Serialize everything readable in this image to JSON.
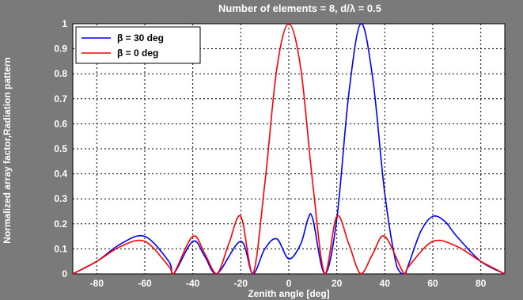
{
  "chart_data": {
    "type": "line",
    "title": "Number of elements = 8, d/λ = 0.5",
    "xlabel": "Zenith angle [deg]",
    "ylabel": "Normalized array factor,Radiation pattern",
    "xlim": [
      -90,
      90
    ],
    "ylim": [
      0,
      1
    ],
    "xticks": [
      "-80",
      "-60",
      "-40",
      "-20",
      "0",
      "20",
      "40",
      "60",
      "80"
    ],
    "yticks": [
      "0",
      "0.1",
      "0.2",
      "0.3",
      "0.4",
      "0.5",
      "0.6",
      "0.7",
      "0.8",
      "0.9",
      "1"
    ],
    "grid": true,
    "legend_position": "top-left",
    "series": [
      {
        "name": "β = 30 deg",
        "color": "#0000ff",
        "x": [
          -90,
          -80,
          -70,
          -60,
          -50,
          -48,
          -40,
          -35,
          -30,
          -20,
          -15,
          -10,
          -5,
          0,
          5,
          8,
          10,
          15,
          20,
          25,
          30,
          35,
          40,
          45,
          48,
          50,
          55,
          60,
          65,
          70,
          80,
          90
        ],
        "y": [
          0.0,
          0.05,
          0.12,
          0.15,
          0.05,
          0.0,
          0.13,
          0.07,
          0.0,
          0.13,
          0.0,
          0.1,
          0.14,
          0.06,
          0.12,
          0.22,
          0.22,
          0.0,
          0.22,
          0.72,
          1.0,
          0.78,
          0.32,
          0.03,
          0.0,
          0.04,
          0.17,
          0.23,
          0.21,
          0.15,
          0.05,
          0.0
        ]
      },
      {
        "name": "β = 0 deg",
        "color": "#ff0000",
        "x": [
          -90,
          -80,
          -70,
          -60,
          -50,
          -48,
          -40,
          -35,
          -30,
          -25,
          -20,
          -15,
          -10,
          -5,
          0,
          5,
          10,
          15,
          20,
          25,
          30,
          35,
          40,
          48,
          50,
          60,
          70,
          80,
          90
        ],
        "y": [
          0.0,
          0.05,
          0.11,
          0.13,
          0.03,
          0.0,
          0.15,
          0.08,
          0.0,
          0.12,
          0.23,
          0.0,
          0.36,
          0.82,
          1.0,
          0.82,
          0.36,
          0.0,
          0.23,
          0.12,
          0.0,
          0.08,
          0.15,
          0.0,
          0.03,
          0.13,
          0.11,
          0.05,
          0.0
        ]
      }
    ]
  }
}
